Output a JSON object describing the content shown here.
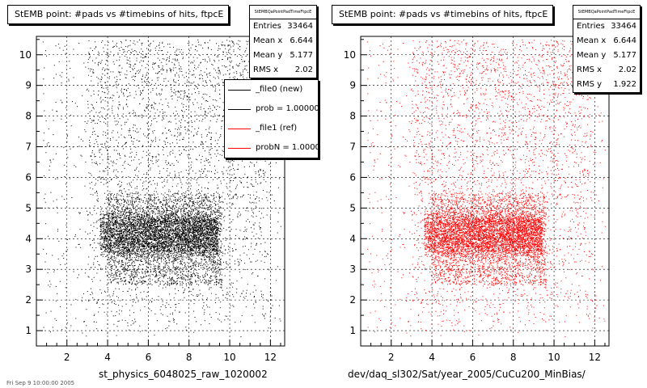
{
  "footer_text": "Fri Sep 9 10:00:00 2005",
  "chart_data": [
    {
      "type": "scatter",
      "title": "StEMB point: #pads vs #timebins of hits, ftpcE",
      "xlabel": "st_physics_6048025_raw_1020002",
      "ylabel": "",
      "xlim": [
        0.5,
        12.7
      ],
      "ylim": [
        0.5,
        10.6
      ],
      "xticks": [
        "2",
        "4",
        "6",
        "8",
        "10",
        "12"
      ],
      "yticks": [
        "1",
        "2",
        "3",
        "4",
        "5",
        "6",
        "7",
        "8",
        "9",
        "10"
      ],
      "grid": true,
      "point_color": "#000000",
      "stats": {
        "name": "StEMBQaPointPadTimeFtpcE",
        "rows": [
          {
            "label": "Entries",
            "value": "33464"
          },
          {
            "label": "Mean x",
            "value": "6.644"
          },
          {
            "label": "Mean y",
            "value": "5.177"
          },
          {
            "label": "RMS x",
            "value": "2.02"
          }
        ]
      },
      "legend": {
        "placement": "top-right",
        "entries": [
          {
            "label": "_file0 (new)",
            "color": "#000000"
          },
          {
            "label": "prob = 1.000000",
            "color": "#000000"
          },
          {
            "label": "_file1 (ref)",
            "color": "#ff0000"
          },
          {
            "label": "probN = 1.000000",
            "color": "#ff0000"
          }
        ]
      }
    },
    {
      "type": "scatter",
      "title": "StEMB point: #pads vs #timebins of hits, ftpcE",
      "xlabel": "dev/daq_sl302/Sat/year_2005/CuCu200_MinBias/",
      "ylabel": "",
      "xlim": [
        0.5,
        12.7
      ],
      "ylim": [
        0.5,
        10.6
      ],
      "xticks": [
        "2",
        "4",
        "6",
        "8",
        "10",
        "12"
      ],
      "yticks": [
        "1",
        "2",
        "3",
        "4",
        "5",
        "6",
        "7",
        "8",
        "9",
        "10"
      ],
      "grid": true,
      "point_color": "#ff0000",
      "stats": {
        "name": "StEMBQaPointPadTimeFtpcE",
        "rows": [
          {
            "label": "Entries",
            "value": "33464"
          },
          {
            "label": "Mean x",
            "value": "6.644"
          },
          {
            "label": "Mean y",
            "value": "5.177"
          },
          {
            "label": "RMS x",
            "value": "2.02"
          },
          {
            "label": "RMS y",
            "value": "1.922"
          }
        ]
      }
    }
  ]
}
